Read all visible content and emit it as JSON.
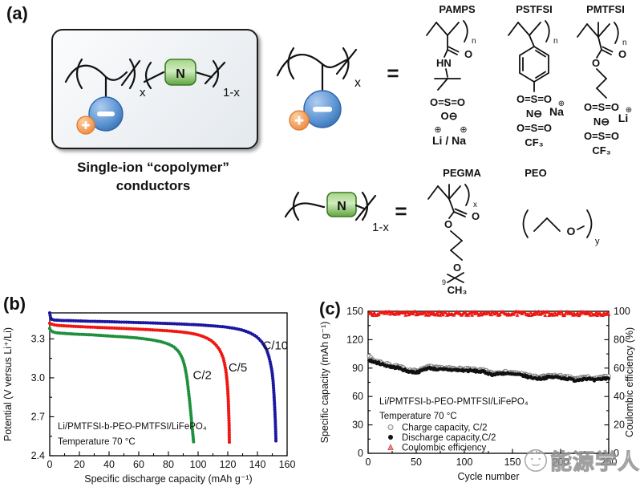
{
  "page": {
    "bg": "#ffffff"
  },
  "panel_a": {
    "label": "(a)",
    "caption": {
      "line1": "Single-ion “copolymer”",
      "line2": "conductors"
    },
    "box": {
      "x_sub": "x",
      "one_minus_x_sub": "1-x",
      "n_symbol": "N"
    },
    "anion_unit": {
      "x_sub": "x",
      "equals": "="
    },
    "neutral_unit": {
      "one_minus_x_sub": "1-x",
      "n_symbol": "N",
      "equals": "="
    },
    "headers": {
      "pamps": "PAMPS",
      "pstfsi": "PSTFSI",
      "pmtfsi": "PMTFSI",
      "pegma": "PEGMA",
      "peo": "PEO"
    },
    "structures": {
      "pamps": {
        "repeat": "n",
        "carbonyl_o": "O",
        "amide": "HN",
        "sulfonyl": "O=S=O",
        "anion_o": "O⊖",
        "sign_left": "⊕",
        "sign_right": "⊕",
        "cations": "Li / Na"
      },
      "pstfsi": {
        "repeat": "n",
        "sulfonyl_top": "O=S=O",
        "imide_n": "N⊖",
        "cation": "Na",
        "cation_sign": "⊕",
        "sulfonyl_bottom": "O=S=O",
        "cf3": "CF₃"
      },
      "pmtfsi": {
        "repeat": "n",
        "carbonyl_o": "O",
        "ester_o": "O",
        "sulfonyl_top": "O=S=O",
        "imide_n": "N⊖",
        "cation": "Li",
        "cation_sign": "⊕",
        "sulfonyl_bottom": "O=S=O",
        "cf3": "CF₃"
      },
      "pegma": {
        "repeat": "x",
        "carbonyl_o": "O",
        "ester_o": "O",
        "chain_o": "O",
        "bracket_sub": "9",
        "terminal": "CH₃"
      },
      "peo": {
        "o": "O",
        "repeat": "y"
      }
    }
  },
  "panel_b": {
    "label": "(b)"
  },
  "panel_c": {
    "label": "(c)"
  },
  "chart_data": [
    {
      "panel": "b",
      "type": "scatter",
      "xlabel": "Specific discharge capacity (mAh g⁻¹)",
      "ylabel": "Potential (V versus Li⁺/Li)",
      "xlim": [
        0,
        160
      ],
      "ylim": [
        2.4,
        3.5
      ],
      "x_ticks": [
        0,
        20,
        40,
        60,
        80,
        100,
        120,
        140,
        160
      ],
      "y_ticks": [
        2.4,
        2.7,
        3.0,
        3.3
      ],
      "y_tick_labels": [
        "2.4",
        "2.7",
        "3.0",
        "3.3"
      ],
      "grid": false,
      "annotations": [
        "Li/PMTFSI-b-PEO-PMTFSI/LiFePO₄",
        "Temperature 70 °C"
      ],
      "series": [
        {
          "name": "C/2",
          "color": "#1e8f3c",
          "label_xy": [
            96.5,
            2.99
          ],
          "points": [
            [
              0,
              3.38
            ],
            [
              1,
              3.36
            ],
            [
              3,
              3.35
            ],
            [
              6,
              3.345
            ],
            [
              12,
              3.34
            ],
            [
              20,
              3.335
            ],
            [
              30,
              3.33
            ],
            [
              40,
              3.322
            ],
            [
              50,
              3.315
            ],
            [
              58,
              3.308
            ],
            [
              64,
              3.3
            ],
            [
              70,
              3.29
            ],
            [
              75,
              3.278
            ],
            [
              80,
              3.26
            ],
            [
              84,
              3.236
            ],
            [
              87,
              3.2
            ],
            [
              89,
              3.16
            ],
            [
              90,
              3.13
            ],
            [
              91,
              3.09
            ],
            [
              92,
              3.03
            ],
            [
              92.8,
              2.97
            ],
            [
              93.5,
              2.9
            ],
            [
              94.2,
              2.83
            ],
            [
              94.8,
              2.76
            ],
            [
              95.4,
              2.69
            ],
            [
              96,
              2.62
            ],
            [
              96.5,
              2.56
            ],
            [
              97,
              2.5
            ]
          ]
        },
        {
          "name": "C/5",
          "color": "#ee1711",
          "label_xy": [
            120.5,
            3.05
          ],
          "points": [
            [
              0,
              3.42
            ],
            [
              2,
              3.41
            ],
            [
              5,
              3.404
            ],
            [
              10,
              3.4
            ],
            [
              20,
              3.394
            ],
            [
              35,
              3.387
            ],
            [
              50,
              3.38
            ],
            [
              65,
              3.372
            ],
            [
              80,
              3.362
            ],
            [
              88,
              3.354
            ],
            [
              94,
              3.345
            ],
            [
              99,
              3.334
            ],
            [
              103,
              3.32
            ],
            [
              106,
              3.305
            ],
            [
              109,
              3.285
            ],
            [
              111,
              3.265
            ],
            [
              113,
              3.24
            ],
            [
              114.5,
              3.215
            ],
            [
              116,
              3.18
            ],
            [
              117,
              3.15
            ],
            [
              118,
              3.1
            ],
            [
              118.8,
              3.05
            ],
            [
              119.4,
              2.99
            ],
            [
              119.9,
              2.92
            ],
            [
              120.3,
              2.84
            ],
            [
              120.6,
              2.75
            ],
            [
              120.9,
              2.64
            ],
            [
              121,
              2.55
            ],
            [
              121.1,
              2.5
            ]
          ]
        },
        {
          "name": "C/10",
          "color": "#1a17a0",
          "label_xy": [
            143.5,
            3.22
          ],
          "points": [
            [
              0,
              3.5
            ],
            [
              0.4,
              3.47
            ],
            [
              1,
              3.452
            ],
            [
              3,
              3.445
            ],
            [
              8,
              3.442
            ],
            [
              15,
              3.44
            ],
            [
              25,
              3.436
            ],
            [
              40,
              3.432
            ],
            [
              55,
              3.427
            ],
            [
              70,
              3.422
            ],
            [
              85,
              3.416
            ],
            [
              100,
              3.408
            ],
            [
              110,
              3.4
            ],
            [
              118,
              3.392
            ],
            [
              124,
              3.382
            ],
            [
              129,
              3.37
            ],
            [
              133,
              3.355
            ],
            [
              136,
              3.34
            ],
            [
              139,
              3.32
            ],
            [
              141,
              3.3
            ],
            [
              143,
              3.275
            ],
            [
              144.5,
              3.25
            ],
            [
              146,
              3.22
            ],
            [
              147,
              3.19
            ],
            [
              148,
              3.15
            ],
            [
              149,
              3.1
            ],
            [
              149.8,
              3.05
            ],
            [
              150.5,
              2.98
            ],
            [
              151,
              2.9
            ],
            [
              151.5,
              2.8
            ],
            [
              152,
              2.68
            ],
            [
              152.3,
              2.57
            ],
            [
              152.5,
              2.5
            ]
          ]
        }
      ]
    },
    {
      "panel": "c",
      "type": "scatter",
      "xlabel": "Cycle number",
      "ylabel_left": "Specific capacity (mAh g⁻¹)",
      "ylabel_right": "Coulombic efficiency (%)",
      "xlim": [
        0,
        250
      ],
      "ylim_left": [
        0,
        150
      ],
      "ylim_right": [
        0,
        100
      ],
      "x_ticks": [
        0,
        50,
        100,
        150,
        200,
        250
      ],
      "y_ticks_left": [
        0,
        30,
        60,
        90,
        120,
        150
      ],
      "y_ticks_right": [
        0,
        20,
        40,
        60,
        80,
        100
      ],
      "annotations": [
        "Li/PMTFSI-b-PEO-PMTFSI/LiFePO₄",
        "Temperature 70 °C"
      ],
      "legend": [
        {
          "label": "Charge capacity, C/2",
          "marker": "open-circle"
        },
        {
          "label": "Discharge capacity,C/2",
          "marker": "filled-circle"
        },
        {
          "label": "Coulombic efficiency",
          "marker": "triangle"
        }
      ],
      "series": [
        {
          "name": "Charge capacity, C/2",
          "axis": "left",
          "marker": "open-circle",
          "color": "#7a7a7a",
          "jitter": 1.2,
          "cycle_range": [
            1,
            250
          ],
          "trend": [
            [
              1,
              104
            ],
            [
              2,
              101
            ],
            [
              4,
              99
            ],
            [
              8,
              97.5
            ],
            [
              12,
              96.5
            ],
            [
              16,
              95
            ],
            [
              20,
              94
            ],
            [
              25,
              92.5
            ],
            [
              30,
              92
            ],
            [
              35,
              90.5
            ],
            [
              40,
              88.5
            ],
            [
              45,
              87.5
            ],
            [
              50,
              87
            ],
            [
              55,
              88.5
            ],
            [
              60,
              91
            ],
            [
              65,
              91.5
            ],
            [
              70,
              90.5
            ],
            [
              75,
              90
            ],
            [
              80,
              90
            ],
            [
              90,
              89.5
            ],
            [
              100,
              89
            ],
            [
              110,
              88.5
            ],
            [
              115,
              88
            ],
            [
              120,
              87.5
            ],
            [
              125,
              86
            ],
            [
              130,
              84.5
            ],
            [
              135,
              85.5
            ],
            [
              140,
              86
            ],
            [
              145,
              85.5
            ],
            [
              150,
              85
            ],
            [
              155,
              84.5
            ],
            [
              160,
              84
            ],
            [
              165,
              82.5
            ],
            [
              170,
              81.5
            ],
            [
              175,
              80.5
            ],
            [
              180,
              80.5
            ],
            [
              185,
              81.5
            ],
            [
              190,
              82
            ],
            [
              195,
              82
            ],
            [
              200,
              81.5
            ],
            [
              205,
              80.5
            ],
            [
              210,
              80
            ],
            [
              215,
              78.5
            ],
            [
              220,
              79.5
            ],
            [
              225,
              80.5
            ],
            [
              230,
              80
            ],
            [
              235,
              78.5
            ],
            [
              240,
              79.5
            ],
            [
              245,
              80.5
            ],
            [
              250,
              81
            ]
          ]
        },
        {
          "name": "Discharge capacity,C/2",
          "axis": "left",
          "marker": "filled-circle",
          "color": "#111111",
          "jitter": 1.1,
          "cycle_range": [
            1,
            250
          ],
          "trend": [
            [
              1,
              99
            ],
            [
              4,
              97
            ],
            [
              8,
              96
            ],
            [
              12,
              95
            ],
            [
              16,
              93.5
            ],
            [
              20,
              92.5
            ],
            [
              25,
              91
            ],
            [
              30,
              90.5
            ],
            [
              35,
              89
            ],
            [
              40,
              87
            ],
            [
              45,
              86
            ],
            [
              50,
              85.5
            ],
            [
              55,
              87
            ],
            [
              60,
              89.5
            ],
            [
              65,
              90
            ],
            [
              70,
              89
            ],
            [
              75,
              88.5
            ],
            [
              80,
              88.5
            ],
            [
              90,
              88
            ],
            [
              100,
              87.5
            ],
            [
              110,
              87
            ],
            [
              115,
              86.5
            ],
            [
              120,
              86
            ],
            [
              125,
              84.5
            ],
            [
              130,
              83
            ],
            [
              135,
              84
            ],
            [
              140,
              84.5
            ],
            [
              145,
              84
            ],
            [
              150,
              83.5
            ],
            [
              155,
              83
            ],
            [
              160,
              82.5
            ],
            [
              165,
              81
            ],
            [
              170,
              80
            ],
            [
              175,
              79
            ],
            [
              180,
              79
            ],
            [
              185,
              80
            ],
            [
              190,
              80.5
            ],
            [
              195,
              80.5
            ],
            [
              200,
              80
            ],
            [
              205,
              79
            ],
            [
              210,
              78.5
            ],
            [
              215,
              77
            ],
            [
              220,
              78
            ],
            [
              225,
              79
            ],
            [
              230,
              78.5
            ],
            [
              235,
              77
            ],
            [
              240,
              78
            ],
            [
              245,
              79
            ],
            [
              250,
              79.5
            ]
          ]
        },
        {
          "name": "Coulombic efficiency",
          "axis": "right",
          "marker": "triangle",
          "color": "#ee1711",
          "jitter": 1.4,
          "cycle_range": [
            1,
            250
          ],
          "trend": [
            [
              1,
              98.3
            ],
            [
              250,
              98.3
            ]
          ]
        }
      ]
    }
  ],
  "watermark": {
    "text": "能源学人"
  }
}
